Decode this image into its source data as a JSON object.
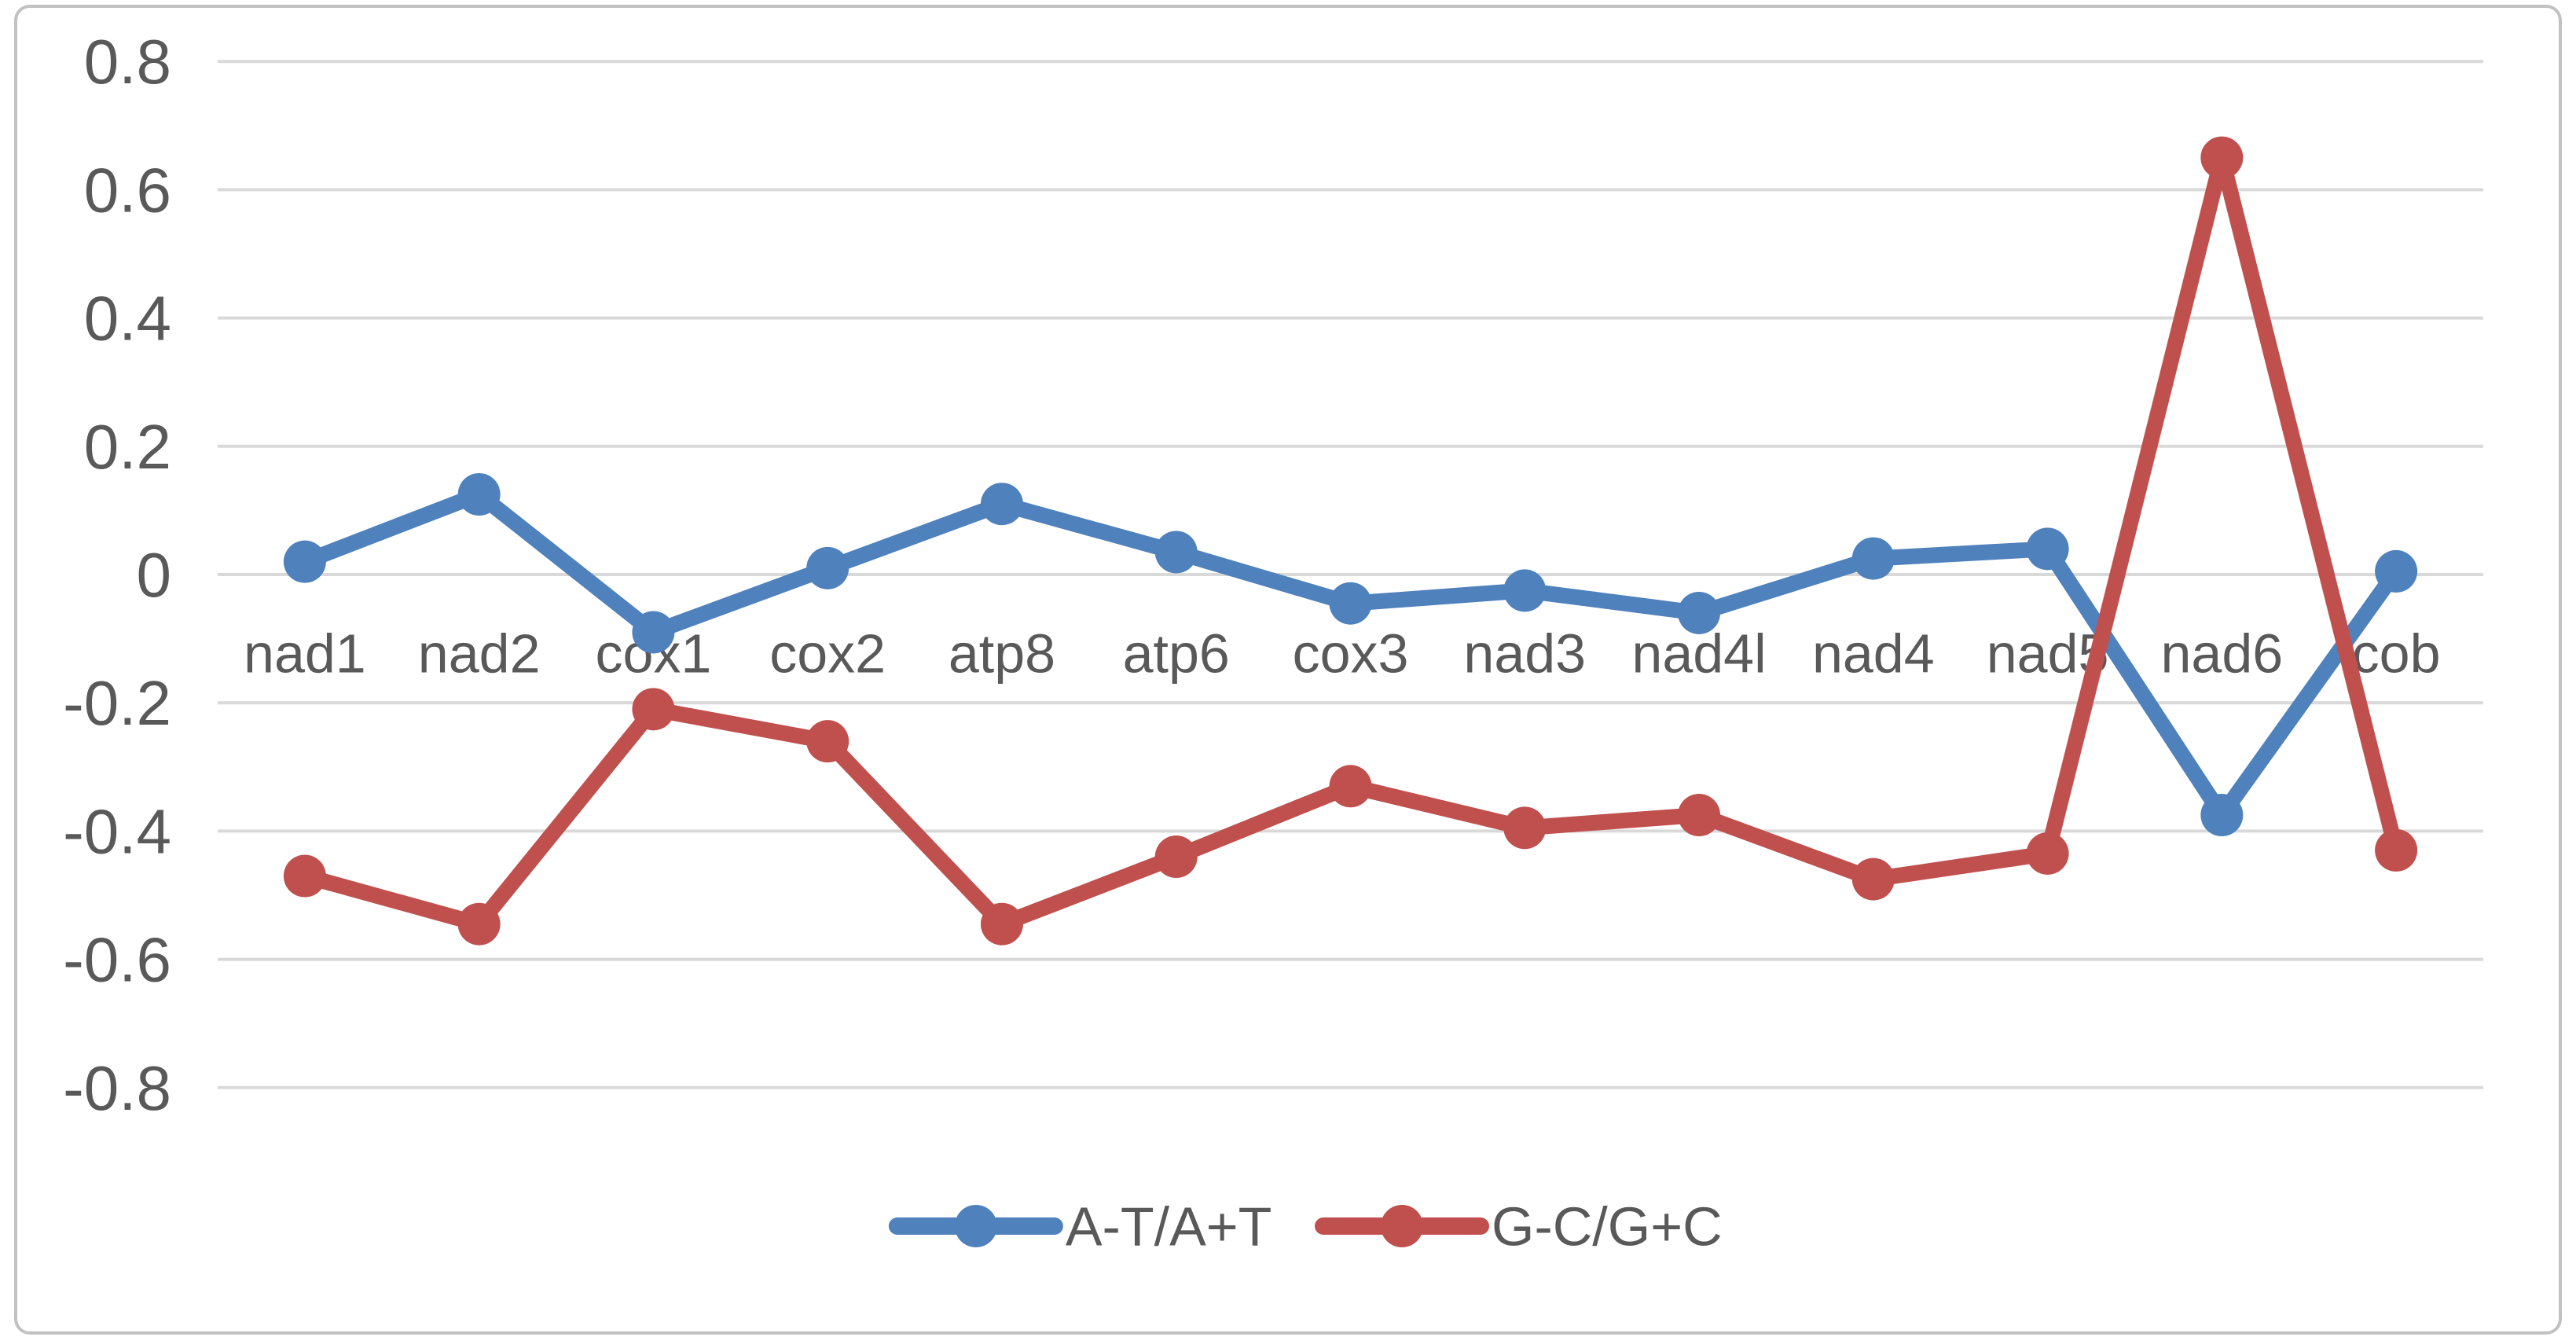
{
  "chart_data": {
    "type": "line",
    "title": "",
    "xlabel": "",
    "ylabel": "",
    "categories": [
      "nad1",
      "nad2",
      "cox1",
      "cox2",
      "atp8",
      "atp6",
      "cox3",
      "nad3",
      "nad4l",
      "nad4",
      "nad5",
      "nad6",
      "cob"
    ],
    "series": [
      {
        "name": "A-T/A+T",
        "color": "#4F81BD",
        "values": [
          0.02,
          0.125,
          -0.09,
          0.01,
          0.11,
          0.035,
          -0.045,
          -0.025,
          -0.06,
          0.025,
          0.04,
          -0.375,
          0.005
        ]
      },
      {
        "name": "G-C/G+C",
        "color": "#C0504D",
        "values": [
          -0.47,
          -0.545,
          -0.21,
          -0.26,
          -0.545,
          -0.44,
          -0.33,
          -0.395,
          -0.375,
          -0.475,
          -0.435,
          0.65,
          -0.43
        ]
      }
    ],
    "ylim": [
      -0.8,
      0.8
    ],
    "ytick_step": 0.2,
    "yticks": [
      "0.8",
      "0.6",
      "0.4",
      "0.2",
      "0",
      "-0.2",
      "-0.4",
      "-0.6",
      "-0.8"
    ],
    "grid": true,
    "legend_position": "bottom-center",
    "marker": "circle"
  },
  "style_colors": {
    "gridline": "#D9D9D9",
    "axis_text": "#595959",
    "frame_border": "#C1C1C1",
    "background": "#FFFFFF"
  }
}
